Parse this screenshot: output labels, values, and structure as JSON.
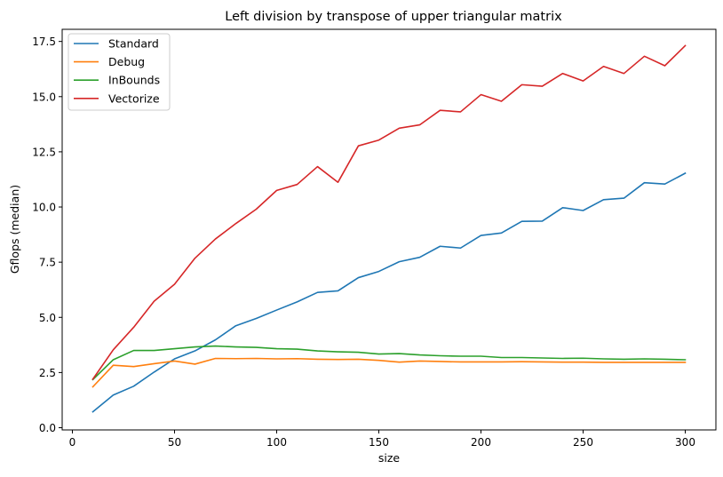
{
  "chart_data": {
    "type": "line",
    "title": "Left division by transpose of upper triangular matrix",
    "xlabel": "size",
    "ylabel": "Gflops (median)",
    "xlim": [
      -5,
      315
    ],
    "ylim": [
      -0.1,
      18.05
    ],
    "xticks": [
      0,
      50,
      100,
      150,
      200,
      250,
      300
    ],
    "xtick_labels": [
      "0",
      "50",
      "100",
      "150",
      "200",
      "250",
      "300"
    ],
    "yticks": [
      0.0,
      2.5,
      5.0,
      7.5,
      10.0,
      12.5,
      15.0,
      17.5
    ],
    "ytick_labels": [
      "0.0",
      "2.5",
      "5.0",
      "7.5",
      "10.0",
      "12.5",
      "15.0",
      "17.5"
    ],
    "grid": false,
    "legend_position": "top-left",
    "x": [
      10,
      20,
      30,
      40,
      50,
      60,
      70,
      80,
      90,
      100,
      110,
      120,
      130,
      140,
      150,
      160,
      170,
      180,
      190,
      200,
      210,
      220,
      230,
      240,
      250,
      260,
      270,
      280,
      290,
      300
    ],
    "series": [
      {
        "name": "Standard",
        "color": "#1f77b4",
        "values": [
          0.72,
          1.48,
          1.88,
          2.52,
          3.12,
          3.48,
          3.98,
          4.62,
          4.95,
          5.33,
          5.7,
          6.13,
          6.2,
          6.8,
          7.08,
          7.52,
          7.72,
          8.22,
          8.14,
          8.71,
          8.82,
          9.35,
          9.36,
          9.97,
          9.84,
          10.33,
          10.4,
          11.1,
          11.04,
          11.53
        ]
      },
      {
        "name": "Debug",
        "color": "#ff7f0e",
        "values": [
          1.85,
          2.83,
          2.77,
          2.9,
          3.02,
          2.88,
          3.14,
          3.13,
          3.14,
          3.12,
          3.13,
          3.1,
          3.09,
          3.1,
          3.05,
          2.97,
          3.02,
          3.0,
          2.98,
          2.98,
          2.98,
          2.99,
          2.98,
          2.97,
          2.97,
          2.96,
          2.96,
          2.96,
          2.96,
          2.96
        ]
      },
      {
        "name": "InBounds",
        "color": "#2ca02c",
        "values": [
          2.18,
          3.08,
          3.5,
          3.5,
          3.58,
          3.66,
          3.7,
          3.66,
          3.64,
          3.58,
          3.56,
          3.48,
          3.44,
          3.42,
          3.34,
          3.36,
          3.3,
          3.26,
          3.24,
          3.24,
          3.18,
          3.18,
          3.16,
          3.14,
          3.15,
          3.12,
          3.1,
          3.12,
          3.1,
          3.08
        ]
      },
      {
        "name": "Vectorize",
        "color": "#d62728",
        "values": [
          2.2,
          3.53,
          4.55,
          5.73,
          6.5,
          7.68,
          8.55,
          9.25,
          9.9,
          10.75,
          11.02,
          11.83,
          11.12,
          12.77,
          13.03,
          13.57,
          13.72,
          14.38,
          14.31,
          15.09,
          14.79,
          15.54,
          15.47,
          16.05,
          15.71,
          16.37,
          16.05,
          16.83,
          16.4,
          17.31
        ]
      }
    ]
  }
}
